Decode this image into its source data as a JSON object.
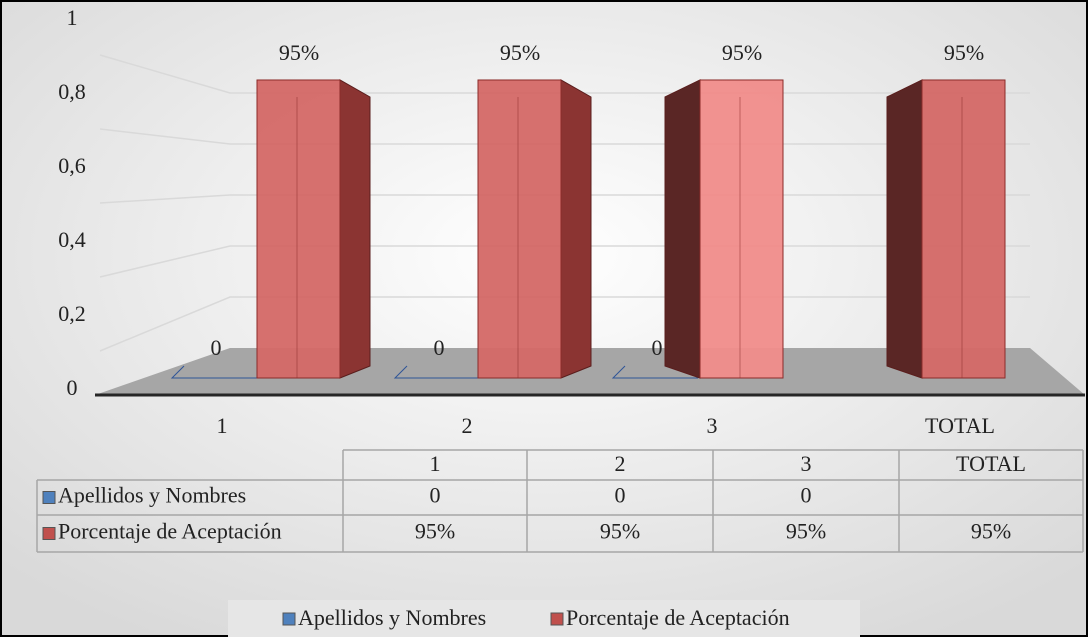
{
  "chart_data": {
    "type": "bar3d",
    "categories": [
      "1",
      "2",
      "3",
      "TOTAL"
    ],
    "series": [
      {
        "name": "Apellidos y Nombres",
        "color": "#4f81bd",
        "values": [
          0,
          0,
          0,
          null
        ]
      },
      {
        "name": "Porcentaje de Aceptación",
        "color": "#c0504d",
        "values": [
          0.95,
          0.95,
          0.95,
          0.95
        ],
        "value_labels": [
          "95%",
          "95%",
          "95%",
          "95%"
        ]
      }
    ],
    "ylim": [
      0,
      1
    ],
    "yticks": [
      0,
      {
        "value": 0.2,
        "label": "0,2"
      },
      {
        "value": 0.4,
        "label": "0,4"
      },
      {
        "value": 0.6,
        "label": "0,6"
      },
      {
        "value": 0.8,
        "label": "0,8"
      },
      1
    ],
    "grid": true,
    "data_table": true,
    "legend": "bottom"
  }
}
